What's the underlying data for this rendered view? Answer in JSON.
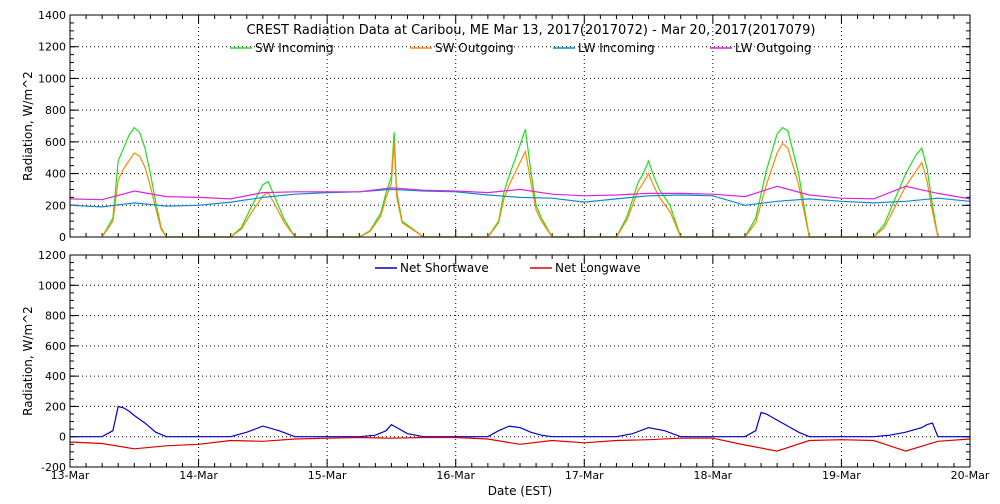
{
  "chart_data": [
    {
      "type": "line",
      "title": "CREST Radiation Data at Caribou, ME   Mar 13, 2017(2017072) - Mar 20, 2017(2017079)",
      "xlabel": "",
      "ylabel": "Radiation, W/m^2",
      "ylim": [
        0,
        1400
      ],
      "yticks": [
        "0",
        "200",
        "400",
        "600",
        "800",
        "1000",
        "1200",
        "1400"
      ],
      "xlim": [
        "13-Mar",
        "20-Mar"
      ],
      "grid": true,
      "legend_position": "top",
      "series": [
        {
          "name": "SW Incoming",
          "color": "#22dd22",
          "x": [
            "13-Mar 06:00",
            "13-Mar 08:00",
            "13-Mar 09:00",
            "13-Mar 10:00",
            "13-Mar 11:00",
            "13-Mar 12:00",
            "13-Mar 13:00",
            "13-Mar 14:00",
            "13-Mar 15:00",
            "13-Mar 16:00",
            "13-Mar 17:00",
            "13-Mar 18:00",
            "14-Mar 06:00",
            "14-Mar 08:00",
            "14-Mar 10:00",
            "14-Mar 12:00",
            "14-Mar 13:00",
            "14-Mar 14:00",
            "14-Mar 16:00",
            "14-Mar 18:00",
            "15-Mar 06:00",
            "15-Mar 08:00",
            "15-Mar 10:00",
            "15-Mar 11:00",
            "15-Mar 12:00",
            "15-Mar 12:30",
            "15-Mar 13:00",
            "15-Mar 14:00",
            "15-Mar 16:00",
            "15-Mar 18:00",
            "16-Mar 06:00",
            "16-Mar 08:00",
            "16-Mar 09:00",
            "16-Mar 10:00",
            "16-Mar 11:00",
            "16-Mar 12:00",
            "16-Mar 13:00",
            "16-Mar 14:00",
            "16-Mar 15:00",
            "16-Mar 16:00",
            "16-Mar 18:00",
            "17-Mar 06:00",
            "17-Mar 08:00",
            "17-Mar 10:00",
            "17-Mar 11:00",
            "17-Mar 12:00",
            "17-Mar 13:00",
            "17-Mar 14:00",
            "17-Mar 16:00",
            "17-Mar 18:00",
            "18-Mar 06:00",
            "18-Mar 08:00",
            "18-Mar 10:00",
            "18-Mar 12:00",
            "18-Mar 13:00",
            "18-Mar 14:00",
            "18-Mar 16:00",
            "18-Mar 18:00",
            "19-Mar 06:00",
            "19-Mar 08:00",
            "19-Mar 10:00",
            "19-Mar 12:00",
            "19-Mar 14:00",
            "19-Mar 15:00",
            "19-Mar 16:00",
            "19-Mar 17:00",
            "19-Mar 18:00"
          ],
          "y": [
            0,
            120,
            480,
            560,
            640,
            690,
            660,
            560,
            400,
            220,
            60,
            0,
            0,
            60,
            200,
            330,
            350,
            270,
            110,
            0,
            0,
            40,
            150,
            280,
            380,
            660,
            280,
            100,
            50,
            0,
            0,
            100,
            280,
            390,
            480,
            580,
            680,
            420,
            200,
            120,
            0,
            0,
            130,
            340,
            400,
            480,
            380,
            300,
            200,
            0,
            0,
            120,
            420,
            650,
            690,
            670,
            400,
            0,
            0,
            80,
            240,
            400,
            520,
            560,
            430,
            200,
            0
          ]
        },
        {
          "name": "SW Outgoing",
          "color": "#ff8800",
          "x": [
            "13-Mar 06:00",
            "13-Mar 08:00",
            "13-Mar 09:00",
            "13-Mar 10:00",
            "13-Mar 11:00",
            "13-Mar 12:00",
            "13-Mar 13:00",
            "13-Mar 14:00",
            "13-Mar 15:00",
            "13-Mar 16:00",
            "13-Mar 17:00",
            "13-Mar 18:00",
            "14-Mar 06:00",
            "14-Mar 08:00",
            "14-Mar 10:00",
            "14-Mar 12:00",
            "14-Mar 13:00",
            "14-Mar 14:00",
            "14-Mar 16:00",
            "14-Mar 18:00",
            "15-Mar 06:00",
            "15-Mar 08:00",
            "15-Mar 10:00",
            "15-Mar 11:00",
            "15-Mar 12:00",
            "15-Mar 12:30",
            "15-Mar 13:00",
            "15-Mar 14:00",
            "15-Mar 16:00",
            "15-Mar 18:00",
            "16-Mar 06:00",
            "16-Mar 08:00",
            "16-Mar 09:00",
            "16-Mar 10:00",
            "16-Mar 11:00",
            "16-Mar 12:00",
            "16-Mar 13:00",
            "16-Mar 14:00",
            "16-Mar 15:00",
            "16-Mar 16:00",
            "16-Mar 18:00",
            "17-Mar 06:00",
            "17-Mar 08:00",
            "17-Mar 10:00",
            "17-Mar 11:00",
            "17-Mar 12:00",
            "17-Mar 13:00",
            "17-Mar 14:00",
            "17-Mar 16:00",
            "17-Mar 18:00",
            "18-Mar 06:00",
            "18-Mar 08:00",
            "18-Mar 10:00",
            "18-Mar 12:00",
            "18-Mar 13:00",
            "18-Mar 14:00",
            "18-Mar 16:00",
            "18-Mar 18:00",
            "19-Mar 06:00",
            "19-Mar 08:00",
            "19-Mar 10:00",
            "19-Mar 12:00",
            "19-Mar 14:00",
            "19-Mar 15:00",
            "19-Mar 16:00",
            "19-Mar 17:00",
            "19-Mar 18:00"
          ],
          "y": [
            0,
            100,
            360,
            430,
            480,
            530,
            510,
            440,
            320,
            180,
            50,
            0,
            0,
            50,
            160,
            260,
            280,
            220,
            90,
            0,
            0,
            35,
            130,
            250,
            340,
            600,
            250,
            90,
            45,
            0,
            0,
            90,
            240,
            330,
            400,
            470,
            540,
            350,
            170,
            100,
            0,
            0,
            110,
            290,
            340,
            400,
            320,
            250,
            160,
            0,
            0,
            90,
            330,
            530,
            590,
            560,
            330,
            0,
            0,
            60,
            190,
            320,
            420,
            470,
            350,
            160,
            0
          ]
        },
        {
          "name": "LW Incoming",
          "color": "#1188cc",
          "x": [
            "13-Mar 00:00",
            "13-Mar 06:00",
            "13-Mar 12:00",
            "13-Mar 18:00",
            "14-Mar 00:00",
            "14-Mar 06:00",
            "14-Mar 12:00",
            "14-Mar 18:00",
            "15-Mar 00:00",
            "15-Mar 06:00",
            "15-Mar 12:00",
            "15-Mar 18:00",
            "16-Mar 00:00",
            "16-Mar 06:00",
            "16-Mar 12:00",
            "16-Mar 18:00",
            "17-Mar 00:00",
            "17-Mar 06:00",
            "17-Mar 12:00",
            "17-Mar 18:00",
            "18-Mar 00:00",
            "18-Mar 06:00",
            "18-Mar 12:00",
            "18-Mar 18:00",
            "19-Mar 00:00",
            "19-Mar 06:00",
            "19-Mar 12:00",
            "19-Mar 18:00",
            "20-Mar 00:00"
          ],
          "y": [
            200,
            190,
            215,
            195,
            200,
            220,
            250,
            270,
            280,
            285,
            300,
            290,
            285,
            265,
            250,
            245,
            220,
            240,
            260,
            265,
            260,
            200,
            225,
            240,
            225,
            215,
            225,
            245,
            225
          ]
        },
        {
          "name": "LW Outgoing",
          "color": "#dd22dd",
          "x": [
            "13-Mar 00:00",
            "13-Mar 06:00",
            "13-Mar 12:00",
            "13-Mar 18:00",
            "14-Mar 00:00",
            "14-Mar 06:00",
            "14-Mar 12:00",
            "14-Mar 18:00",
            "15-Mar 00:00",
            "15-Mar 06:00",
            "15-Mar 12:00",
            "15-Mar 18:00",
            "16-Mar 00:00",
            "16-Mar 06:00",
            "16-Mar 12:00",
            "16-Mar 18:00",
            "17-Mar 00:00",
            "17-Mar 06:00",
            "17-Mar 12:00",
            "17-Mar 18:00",
            "18-Mar 00:00",
            "18-Mar 06:00",
            "18-Mar 12:00",
            "18-Mar 18:00",
            "19-Mar 00:00",
            "19-Mar 06:00",
            "19-Mar 12:00",
            "19-Mar 18:00",
            "20-Mar 00:00"
          ],
          "y": [
            240,
            235,
            290,
            255,
            250,
            240,
            280,
            285,
            285,
            285,
            310,
            295,
            290,
            280,
            300,
            270,
            260,
            265,
            275,
            275,
            270,
            255,
            320,
            265,
            245,
            240,
            320,
            275,
            240
          ]
        }
      ]
    },
    {
      "type": "line",
      "title": "",
      "xlabel": "Date (EST)",
      "ylabel": "Radiation, W/m^2",
      "ylim": [
        -200,
        1200
      ],
      "yticks": [
        "-200",
        "0",
        "200",
        "400",
        "600",
        "800",
        "1000",
        "1200"
      ],
      "xlim": [
        "13-Mar",
        "20-Mar"
      ],
      "categories": [
        "13-Mar",
        "14-Mar",
        "15-Mar",
        "16-Mar",
        "17-Mar",
        "18-Mar",
        "19-Mar",
        "20-Mar"
      ],
      "grid": true,
      "legend_position": "top",
      "series": [
        {
          "name": "Net Shortwave",
          "color": "#0000cc",
          "x": [
            "13-Mar 00:00",
            "13-Mar 06:00",
            "13-Mar 08:00",
            "13-Mar 09:00",
            "13-Mar 10:00",
            "13-Mar 11:00",
            "13-Mar 12:00",
            "13-Mar 14:00",
            "13-Mar 16:00",
            "13-Mar 18:00",
            "14-Mar 06:00",
            "14-Mar 09:00",
            "14-Mar 12:00",
            "14-Mar 15:00",
            "14-Mar 18:00",
            "15-Mar 06:00",
            "15-Mar 09:00",
            "15-Mar 11:00",
            "15-Mar 12:00",
            "15-Mar 13:00",
            "15-Mar 15:00",
            "15-Mar 18:00",
            "16-Mar 06:00",
            "16-Mar 08:00",
            "16-Mar 10:00",
            "16-Mar 12:00",
            "16-Mar 14:00",
            "16-Mar 16:00",
            "16-Mar 18:00",
            "17-Mar 06:00",
            "17-Mar 09:00",
            "17-Mar 12:00",
            "17-Mar 15:00",
            "17-Mar 18:00",
            "18-Mar 06:00",
            "18-Mar 08:00",
            "18-Mar 09:00",
            "18-Mar 10:00",
            "18-Mar 12:00",
            "18-Mar 14:00",
            "18-Mar 16:00",
            "18-Mar 18:00",
            "19-Mar 06:00",
            "19-Mar 09:00",
            "19-Mar 12:00",
            "19-Mar 15:00",
            "19-Mar 16:00",
            "19-Mar 17:00",
            "19-Mar 18:00",
            "20-Mar 00:00"
          ],
          "y": [
            0,
            0,
            40,
            200,
            190,
            170,
            140,
            90,
            30,
            0,
            0,
            30,
            70,
            40,
            0,
            0,
            10,
            40,
            80,
            60,
            20,
            0,
            0,
            40,
            70,
            60,
            30,
            10,
            0,
            0,
            20,
            60,
            40,
            0,
            0,
            40,
            160,
            150,
            110,
            70,
            30,
            0,
            0,
            10,
            30,
            60,
            80,
            90,
            0,
            0
          ]
        },
        {
          "name": "Net Longwave",
          "color": "#dd0000",
          "x": [
            "13-Mar 00:00",
            "13-Mar 06:00",
            "13-Mar 12:00",
            "13-Mar 18:00",
            "14-Mar 00:00",
            "14-Mar 06:00",
            "14-Mar 12:00",
            "14-Mar 18:00",
            "15-Mar 00:00",
            "15-Mar 06:00",
            "15-Mar 12:00",
            "15-Mar 18:00",
            "16-Mar 00:00",
            "16-Mar 06:00",
            "16-Mar 12:00",
            "16-Mar 18:00",
            "17-Mar 00:00",
            "17-Mar 06:00",
            "17-Mar 12:00",
            "17-Mar 18:00",
            "18-Mar 00:00",
            "18-Mar 06:00",
            "18-Mar 12:00",
            "18-Mar 18:00",
            "19-Mar 00:00",
            "19-Mar 06:00",
            "19-Mar 12:00",
            "19-Mar 18:00",
            "20-Mar 00:00"
          ],
          "y": [
            -35,
            -45,
            -80,
            -60,
            -50,
            -25,
            -30,
            -15,
            -10,
            -5,
            -10,
            -5,
            -5,
            -15,
            -50,
            -25,
            -40,
            -25,
            -20,
            -10,
            -10,
            -55,
            -95,
            -25,
            -20,
            -25,
            -95,
            -30,
            -15
          ]
        }
      ]
    }
  ]
}
